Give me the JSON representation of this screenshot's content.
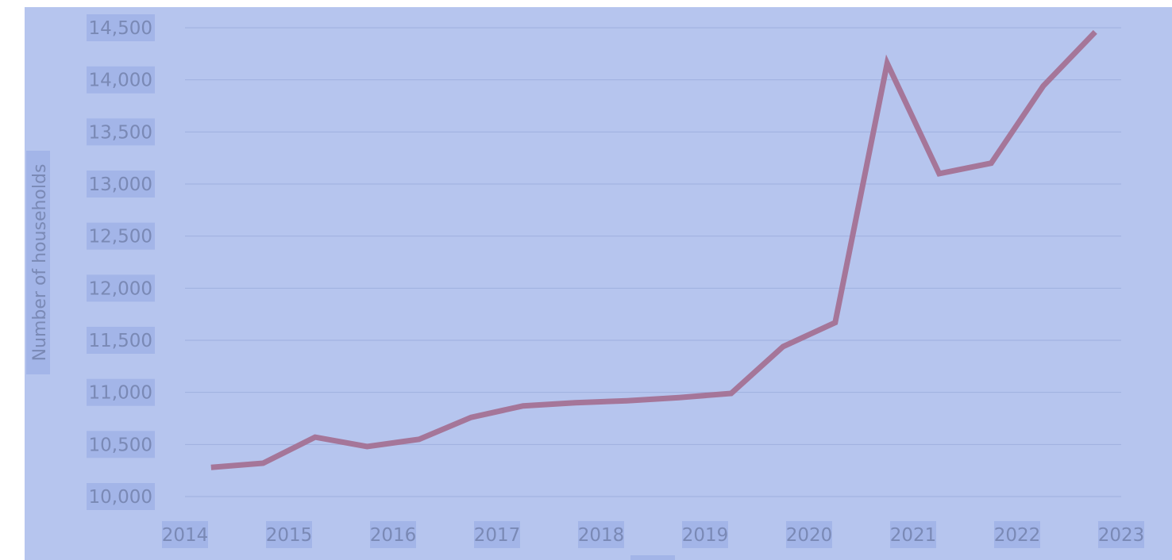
{
  "chart_data": {
    "type": "line",
    "title": "",
    "xlabel": "",
    "ylabel": "Number of households",
    "ylim": [
      10000,
      14500
    ],
    "y_ticks": [
      10000,
      10500,
      11000,
      11500,
      12000,
      12500,
      13000,
      13500,
      14000,
      14500
    ],
    "y_tick_labels": [
      "10,000",
      "10,500",
      "11,000",
      "11,500",
      "12,000",
      "12,500",
      "13,000",
      "13,500",
      "14,000",
      "14,500"
    ],
    "x_ticks": [
      2014,
      2015,
      2016,
      2017,
      2018,
      2019,
      2020,
      2021,
      2022,
      2023
    ],
    "x_tick_labels": [
      "2014",
      "2015",
      "2016",
      "2017",
      "2018",
      "2019",
      "2020",
      "2021",
      "2022",
      "2023"
    ],
    "xlim": [
      2014,
      2023
    ],
    "grid": true,
    "legend": "none",
    "series": [
      {
        "color": "#a57699",
        "x": [
          2014.25,
          2014.75,
          2015.25,
          2015.75,
          2016.25,
          2016.75,
          2017.25,
          2017.75,
          2018.25,
          2018.75,
          2019.25,
          2019.75,
          2020.25,
          2020.75,
          2021.25,
          2021.75,
          2022.25,
          2022.75
        ],
        "values": [
          10280,
          10320,
          10570,
          10480,
          10550,
          10760,
          10870,
          10900,
          10920,
          10950,
          10990,
          11440,
          11670,
          14160,
          13100,
          13200,
          13940,
          14460
        ]
      }
    ]
  }
}
